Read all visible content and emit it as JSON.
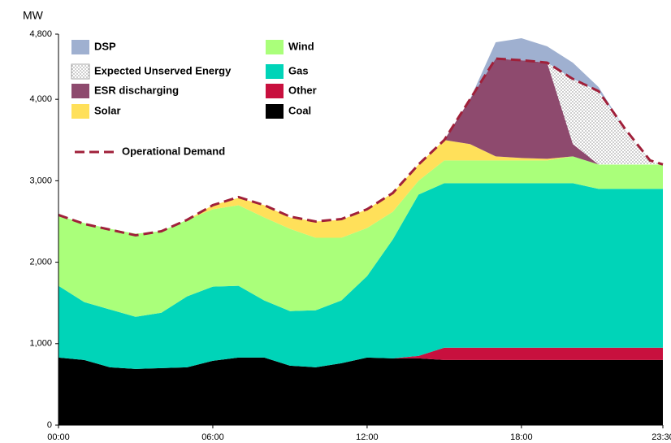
{
  "chart_data": {
    "type": "stacked_area",
    "y_label": "MW",
    "x": [
      0,
      1,
      2,
      3,
      4,
      5,
      6,
      7,
      8,
      9,
      10,
      11,
      12,
      13,
      14,
      15,
      16,
      17,
      18,
      19,
      20,
      21,
      22,
      23,
      23.5
    ],
    "xlim": [
      0,
      23.5
    ],
    "xticks": [
      {
        "value": 0,
        "label": "00:00"
      },
      {
        "value": 6,
        "label": "06:00"
      },
      {
        "value": 12,
        "label": "12:00"
      },
      {
        "value": 18,
        "label": "18:00"
      },
      {
        "value": 23.5,
        "label": "23:30"
      }
    ],
    "ylim": [
      0,
      4800
    ],
    "yticks": [
      0,
      {
        "value": 1000,
        "label": "1,000"
      },
      {
        "value": 2000,
        "label": "2,000"
      },
      {
        "value": 3000,
        "label": "3,000"
      },
      {
        "value": 4000,
        "label": "4,000"
      },
      {
        "value": 4800,
        "label": "4,800"
      }
    ],
    "grid": false,
    "series": [
      {
        "name": "Coal",
        "color": "#000000",
        "values": [
          830,
          800,
          710,
          690,
          700,
          710,
          790,
          830,
          830,
          730,
          710,
          760,
          830,
          820,
          820,
          800,
          800,
          800,
          800,
          800,
          800,
          800,
          800,
          800,
          800
        ]
      },
      {
        "name": "Other",
        "color": "#c8103e",
        "values": [
          0,
          0,
          0,
          0,
          0,
          0,
          0,
          0,
          0,
          0,
          0,
          0,
          0,
          0,
          30,
          150,
          150,
          150,
          150,
          150,
          150,
          150,
          150,
          150,
          150
        ]
      },
      {
        "name": "Gas",
        "color": "#00d4b8",
        "values": [
          880,
          710,
          710,
          640,
          680,
          870,
          910,
          880,
          700,
          670,
          700,
          770,
          1000,
          1460,
          1980,
          2020,
          2020,
          2020,
          2020,
          2020,
          2020,
          1950,
          1950,
          1950,
          1950
        ]
      },
      {
        "name": "Wind",
        "color": "#aaff7a",
        "values": [
          860,
          970,
          990,
          1020,
          1000,
          940,
          950,
          990,
          1020,
          1010,
          890,
          770,
          590,
          340,
          170,
          280,
          280,
          280,
          280,
          280,
          330,
          300,
          300,
          300,
          300
        ]
      },
      {
        "name": "Solar",
        "color": "#ffe05a",
        "values": [
          0,
          0,
          0,
          0,
          0,
          0,
          50,
          90,
          150,
          140,
          200,
          220,
          230,
          230,
          200,
          250,
          200,
          50,
          30,
          20,
          0,
          0,
          0,
          0,
          0
        ]
      },
      {
        "name": "ESR discharging",
        "color": "#8e4a6e",
        "values": [
          0,
          0,
          0,
          0,
          0,
          0,
          0,
          0,
          0,
          0,
          0,
          0,
          0,
          0,
          0,
          0,
          550,
          1200,
          1200,
          1180,
          150,
          0,
          0,
          0,
          0
        ]
      },
      {
        "name": "Expected Unserved Energy",
        "color": "#ffffff",
        "pattern": "dots",
        "values": [
          0,
          0,
          0,
          0,
          0,
          0,
          0,
          0,
          0,
          0,
          0,
          0,
          0,
          0,
          0,
          0,
          0,
          0,
          0,
          0,
          800,
          900,
          450,
          50,
          0
        ]
      },
      {
        "name": "DSP",
        "color": "#9fb0d0",
        "values": [
          0,
          0,
          0,
          0,
          0,
          0,
          0,
          0,
          0,
          0,
          0,
          0,
          0,
          0,
          0,
          0,
          0,
          200,
          270,
          200,
          200,
          50,
          0,
          0,
          0
        ]
      }
    ],
    "line": {
      "name": "Operational Demand",
      "color": "#a0203a",
      "dashed": true,
      "values": [
        2580,
        2470,
        2400,
        2330,
        2380,
        2520,
        2700,
        2800,
        2700,
        2560,
        2500,
        2530,
        2650,
        2850,
        3200,
        3500,
        4000,
        4500,
        4480,
        4450,
        4250,
        4100,
        3650,
        3250,
        3200
      ]
    }
  }
}
